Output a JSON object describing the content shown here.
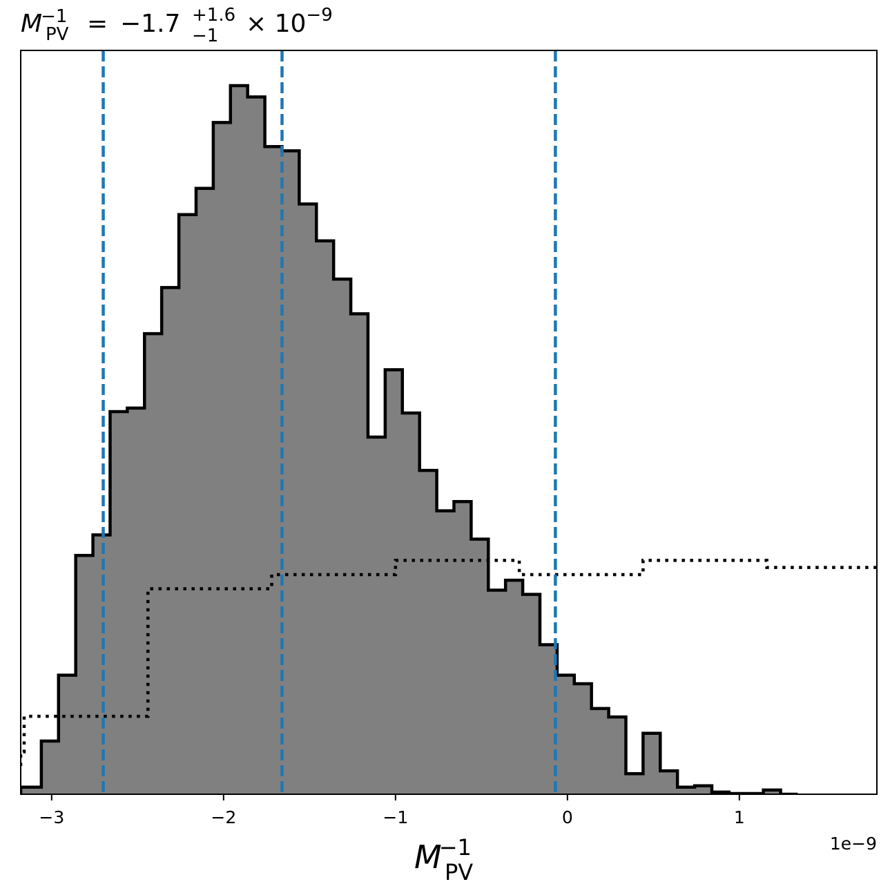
{
  "chart_data": {
    "type": "histogram",
    "title": {
      "lhs_symbol": "M",
      "lhs_subscript": "PV",
      "lhs_superscript": "−1",
      "equals": "=",
      "value": "−1.7",
      "upper_error": "+1.6",
      "lower_error": "−1",
      "multiplier": "× 10",
      "exponent": "−9"
    },
    "xlabel": {
      "symbol": "M",
      "subscript": "PV",
      "superscript": "−1"
    },
    "x_offset_label": "1e−9",
    "xlim": [
      -3.18,
      1.8
    ],
    "ylim": [
      0,
      1.0
    ],
    "xticks": [
      {
        "value": -3,
        "label": "−3"
      },
      {
        "value": -2,
        "label": "−2"
      },
      {
        "value": -1,
        "label": "−1"
      },
      {
        "value": 0,
        "label": "0"
      },
      {
        "value": 1,
        "label": "1"
      }
    ],
    "posterior_histogram": {
      "fill_color": "#808080",
      "edge_color": "#000000",
      "bin_edges": [
        -3.18,
        -3.06,
        -2.96,
        -2.86,
        -2.76,
        -2.66,
        -2.56,
        -2.46,
        -2.36,
        -2.26,
        -2.16,
        -2.06,
        -1.96,
        -1.86,
        -1.76,
        -1.66,
        -1.56,
        -1.46,
        -1.36,
        -1.26,
        -1.16,
        -1.06,
        -0.96,
        -0.86,
        -0.76,
        -0.66,
        -0.56,
        -0.46,
        -0.36,
        -0.26,
        -0.16,
        -0.06,
        0.04,
        0.14,
        0.24,
        0.34,
        0.44,
        0.54,
        0.64,
        0.74,
        0.84,
        0.94,
        1.04,
        1.14,
        1.24,
        1.34
      ],
      "values": [
        0.01,
        0.075,
        0.168,
        0.337,
        0.366,
        0.54,
        0.545,
        0.65,
        0.715,
        0.818,
        0.855,
        0.948,
        1.0,
        0.984,
        0.914,
        0.908,
        0.833,
        0.781,
        0.727,
        0.678,
        0.504,
        0.599,
        0.538,
        0.457,
        0.4,
        0.413,
        0.36,
        0.288,
        0.302,
        0.282,
        0.211,
        0.168,
        0.156,
        0.121,
        0.109,
        0.029,
        0.086,
        0.033,
        0.01,
        0.012,
        0.003,
        0.001,
        0.001,
        0.006,
        0.0
      ]
    },
    "prior_step": {
      "line_color": "#000000",
      "style": "dotted",
      "bin_edges": [
        -3.18,
        -3.16,
        -2.44,
        -1.72,
        -1.0,
        -0.28,
        0.44,
        1.16,
        1.8
      ],
      "values": [
        0.06,
        0.11,
        0.29,
        0.31,
        0.33,
        0.31,
        0.33,
        0.32
      ]
    },
    "quantile_lines": {
      "color": "#1f77b4",
      "style": "dashed",
      "x": [
        -2.7,
        -1.66,
        -0.07
      ]
    }
  }
}
